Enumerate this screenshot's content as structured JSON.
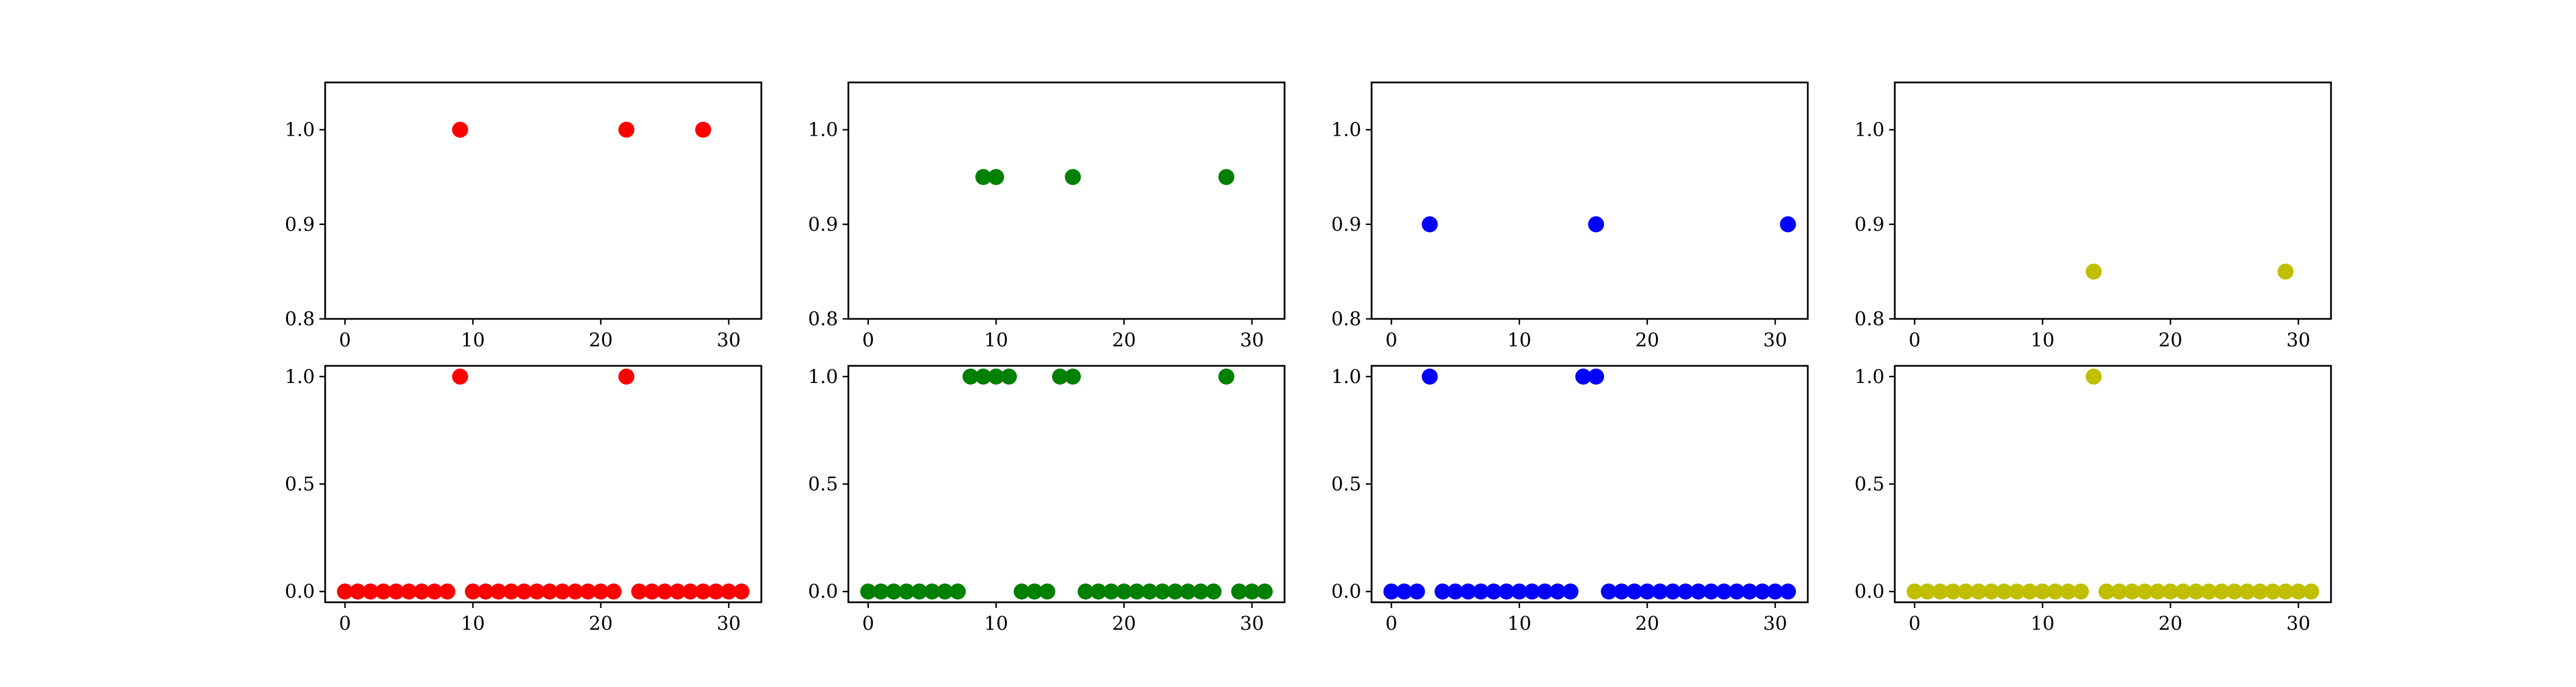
{
  "chart_data": [
    {
      "type": "scatter",
      "color": "#ff0000",
      "xlim": [
        -1.55,
        32.55
      ],
      "ylim": [
        0.8,
        1.05
      ],
      "xticks": [
        0,
        10,
        20,
        30
      ],
      "yticks": [
        0.8,
        0.9,
        1.0
      ],
      "ytick_labels": [
        "0.8",
        "0.9",
        "1.0"
      ],
      "x": [
        9,
        22,
        28
      ],
      "y": [
        1.0,
        1.0,
        1.0
      ]
    },
    {
      "type": "scatter",
      "color": "#008000",
      "xlim": [
        -1.55,
        32.55
      ],
      "ylim": [
        0.8,
        1.05
      ],
      "xticks": [
        0,
        10,
        20,
        30
      ],
      "yticks": [
        0.8,
        0.9,
        1.0
      ],
      "ytick_labels": [
        "0.8",
        "0.9",
        "1.0"
      ],
      "x": [
        9,
        10,
        16,
        28
      ],
      "y": [
        0.95,
        0.95,
        0.95,
        0.95
      ]
    },
    {
      "type": "scatter",
      "color": "#0000ff",
      "xlim": [
        -1.55,
        32.55
      ],
      "ylim": [
        0.8,
        1.05
      ],
      "xticks": [
        0,
        10,
        20,
        30
      ],
      "yticks": [
        0.8,
        0.9,
        1.0
      ],
      "ytick_labels": [
        "0.8",
        "0.9",
        "1.0"
      ],
      "x": [
        3,
        16,
        31
      ],
      "y": [
        0.9,
        0.9,
        0.9
      ]
    },
    {
      "type": "scatter",
      "color": "#bfbf00",
      "xlim": [
        -1.55,
        32.55
      ],
      "ylim": [
        0.8,
        1.05
      ],
      "xticks": [
        0,
        10,
        20,
        30
      ],
      "yticks": [
        0.8,
        0.9,
        1.0
      ],
      "ytick_labels": [
        "0.8",
        "0.9",
        "1.0"
      ],
      "x": [
        14,
        29
      ],
      "y": [
        0.85,
        0.85
      ]
    },
    {
      "type": "scatter",
      "color": "#ff0000",
      "xlim": [
        -1.55,
        32.55
      ],
      "ylim": [
        -0.05,
        1.05
      ],
      "xticks": [
        0,
        10,
        20,
        30
      ],
      "yticks": [
        0.0,
        0.5,
        1.0
      ],
      "ytick_labels": [
        "0.0",
        "0.5",
        "1.0"
      ],
      "x": [
        0,
        1,
        2,
        3,
        4,
        5,
        6,
        7,
        8,
        9,
        10,
        11,
        12,
        13,
        14,
        15,
        16,
        17,
        18,
        19,
        20,
        21,
        22,
        23,
        24,
        25,
        26,
        27,
        28,
        29,
        30,
        31
      ],
      "y": [
        0,
        0,
        0,
        0,
        0,
        0,
        0,
        0,
        0,
        1,
        0,
        0,
        0,
        0,
        0,
        0,
        0,
        0,
        0,
        0,
        0,
        0,
        1,
        0,
        0,
        0,
        0,
        0,
        0,
        0,
        0,
        0
      ]
    },
    {
      "type": "scatter",
      "color": "#008000",
      "xlim": [
        -1.55,
        32.55
      ],
      "ylim": [
        -0.05,
        1.05
      ],
      "xticks": [
        0,
        10,
        20,
        30
      ],
      "yticks": [
        0.0,
        0.5,
        1.0
      ],
      "ytick_labels": [
        "0.0",
        "0.5",
        "1.0"
      ],
      "x": [
        0,
        1,
        2,
        3,
        4,
        5,
        6,
        7,
        8,
        9,
        10,
        11,
        12,
        13,
        14,
        15,
        16,
        17,
        18,
        19,
        20,
        21,
        22,
        23,
        24,
        25,
        26,
        27,
        28,
        29,
        30,
        31
      ],
      "y": [
        0,
        0,
        0,
        0,
        0,
        0,
        0,
        0,
        1,
        1,
        1,
        1,
        0,
        0,
        0,
        1,
        1,
        0,
        0,
        0,
        0,
        0,
        0,
        0,
        0,
        0,
        0,
        0,
        1,
        0,
        0,
        0
      ]
    },
    {
      "type": "scatter",
      "color": "#0000ff",
      "xlim": [
        -1.55,
        32.55
      ],
      "ylim": [
        -0.05,
        1.05
      ],
      "xticks": [
        0,
        10,
        20,
        30
      ],
      "yticks": [
        0.0,
        0.5,
        1.0
      ],
      "ytick_labels": [
        "0.0",
        "0.5",
        "1.0"
      ],
      "x": [
        0,
        1,
        2,
        3,
        4,
        5,
        6,
        7,
        8,
        9,
        10,
        11,
        12,
        13,
        14,
        15,
        16,
        17,
        18,
        19,
        20,
        21,
        22,
        23,
        24,
        25,
        26,
        27,
        28,
        29,
        30,
        31
      ],
      "y": [
        0,
        0,
        0,
        1,
        0,
        0,
        0,
        0,
        0,
        0,
        0,
        0,
        0,
        0,
        0,
        1,
        1,
        0,
        0,
        0,
        0,
        0,
        0,
        0,
        0,
        0,
        0,
        0,
        0,
        0,
        0,
        0
      ]
    },
    {
      "type": "scatter",
      "color": "#bfbf00",
      "xlim": [
        -1.55,
        32.55
      ],
      "ylim": [
        -0.05,
        1.05
      ],
      "xticks": [
        0,
        10,
        20,
        30
      ],
      "yticks": [
        0.0,
        0.5,
        1.0
      ],
      "ytick_labels": [
        "0.0",
        "0.5",
        "1.0"
      ],
      "x": [
        0,
        1,
        2,
        3,
        4,
        5,
        6,
        7,
        8,
        9,
        10,
        11,
        12,
        13,
        14,
        15,
        16,
        17,
        18,
        19,
        20,
        21,
        22,
        23,
        24,
        25,
        26,
        27,
        28,
        29,
        30,
        31
      ],
      "y": [
        0,
        0,
        0,
        0,
        0,
        0,
        0,
        0,
        0,
        0,
        0,
        0,
        0,
        0,
        1,
        0,
        0,
        0,
        0,
        0,
        0,
        0,
        0,
        0,
        0,
        0,
        0,
        0,
        0,
        0,
        0,
        0
      ]
    }
  ]
}
